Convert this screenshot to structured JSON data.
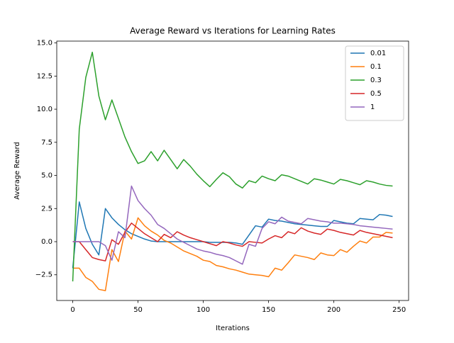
{
  "chart_data": {
    "type": "line",
    "title": "Average Reward vs Iterations for Learning Rates",
    "x_label": "Iterations",
    "y_label": "Average Reward",
    "x": [
      0,
      5,
      10,
      15,
      20,
      25,
      30,
      35,
      40,
      45,
      50,
      55,
      60,
      65,
      70,
      75,
      80,
      85,
      90,
      95,
      100,
      105,
      110,
      115,
      120,
      125,
      130,
      135,
      140,
      145,
      150,
      155,
      160,
      165,
      170,
      175,
      180,
      185,
      190,
      195,
      200,
      205,
      210,
      215,
      220,
      225,
      230,
      235,
      240,
      245
    ],
    "series": [
      {
        "name": "0.01",
        "color": "#1f77b4",
        "values": [
          -2.0,
          3.0,
          1.0,
          -0.2,
          -1.0,
          2.5,
          1.8,
          1.3,
          0.9,
          0.6,
          0.4,
          0.2,
          0.05,
          0,
          0,
          0,
          0,
          0,
          0,
          0,
          0,
          -0.05,
          -0.05,
          -0.05,
          -0.05,
          -0.1,
          -0.2,
          0.5,
          1.2,
          1.1,
          1.7,
          1.6,
          1.55,
          1.45,
          1.35,
          1.3,
          1.25,
          1.2,
          1.15,
          1.15,
          1.6,
          1.5,
          1.4,
          1.35,
          1.75,
          1.7,
          1.65,
          2.05,
          2.0,
          1.9
        ]
      },
      {
        "name": "0.1",
        "color": "#ff7f0e",
        "values": [
          -2.0,
          -2.0,
          -2.7,
          -3.0,
          -3.6,
          -3.7,
          -0.6,
          -1.5,
          0.8,
          0.2,
          1.8,
          1.2,
          0.8,
          0.5,
          0.1,
          -0.1,
          -0.4,
          -0.7,
          -0.9,
          -1.1,
          -1.4,
          -1.5,
          -1.8,
          -1.9,
          -2.05,
          -2.15,
          -2.3,
          -2.45,
          -2.5,
          -2.55,
          -2.65,
          -2.0,
          -2.15,
          -1.6,
          -1.0,
          -1.1,
          -1.2,
          -1.35,
          -0.85,
          -1.0,
          -1.05,
          -0.6,
          -0.8,
          -0.35,
          0.05,
          -0.1,
          0.35,
          0.35,
          0.7,
          0.65
        ]
      },
      {
        "name": "0.3",
        "color": "#2ca02c",
        "values": [
          -3.0,
          8.5,
          12.4,
          14.3,
          11.0,
          9.2,
          10.7,
          9.3,
          7.9,
          6.8,
          5.9,
          6.1,
          6.8,
          6.1,
          6.9,
          6.2,
          5.5,
          6.2,
          5.7,
          5.1,
          4.6,
          4.15,
          4.7,
          5.2,
          4.9,
          4.35,
          4.05,
          4.6,
          4.45,
          4.95,
          4.75,
          4.6,
          5.05,
          4.95,
          4.75,
          4.55,
          4.35,
          4.75,
          4.65,
          4.5,
          4.35,
          4.7,
          4.6,
          4.45,
          4.3,
          4.6,
          4.5,
          4.35,
          4.25,
          4.2
        ]
      },
      {
        "name": "0.5",
        "color": "#d62728",
        "values": [
          0,
          0,
          -0.6,
          -1.2,
          -1.35,
          -1.45,
          0.15,
          -0.2,
          0.7,
          1.4,
          1.0,
          0.6,
          0.3,
          0,
          0.55,
          0.3,
          0.75,
          0.5,
          0.3,
          0.15,
          0,
          -0.15,
          -0.3,
          0,
          -0.1,
          -0.25,
          -0.35,
          0,
          -0.05,
          -0.1,
          0.2,
          0.45,
          0.3,
          0.75,
          0.6,
          1.05,
          0.8,
          0.65,
          0.55,
          0.95,
          0.85,
          0.7,
          0.6,
          0.5,
          0.85,
          0.7,
          0.6,
          0.5,
          0.4,
          0.3
        ]
      },
      {
        "name": "1",
        "color": "#9467bd",
        "values": [
          0,
          0,
          0,
          0,
          0,
          -0.3,
          -1.4,
          0.75,
          0.3,
          4.2,
          3.1,
          2.5,
          2.0,
          1.3,
          1.0,
          0.6,
          0.2,
          -0.05,
          -0.3,
          -0.55,
          -0.7,
          -0.8,
          -0.95,
          -1.05,
          -1.2,
          -1.45,
          -1.7,
          -0.2,
          -0.35,
          1.0,
          1.5,
          1.35,
          1.85,
          1.55,
          1.45,
          1.35,
          1.75,
          1.65,
          1.55,
          1.5,
          1.4,
          1.4,
          1.35,
          1.3,
          1.2,
          1.15,
          1.1,
          1.05,
          1.0,
          0.95
        ]
      }
    ],
    "xlim": [
      -12.25,
      257.25
    ],
    "ylim": [
      -4.44,
      15.14
    ],
    "xticks": [
      0,
      50,
      100,
      150,
      200,
      250
    ],
    "yticks": [
      {
        "value": -2.5,
        "label": "−2.5"
      },
      {
        "value": 0,
        "label": "0.0"
      },
      {
        "value": 2.5,
        "label": "2.5"
      },
      {
        "value": 5,
        "label": "5.0"
      },
      {
        "value": 7.5,
        "label": "7.5"
      },
      {
        "value": 10,
        "label": "10.0"
      },
      {
        "value": 12.5,
        "label": "12.5"
      },
      {
        "value": 15,
        "label": "15.0"
      }
    ],
    "legend": "upper right",
    "grid": false
  }
}
